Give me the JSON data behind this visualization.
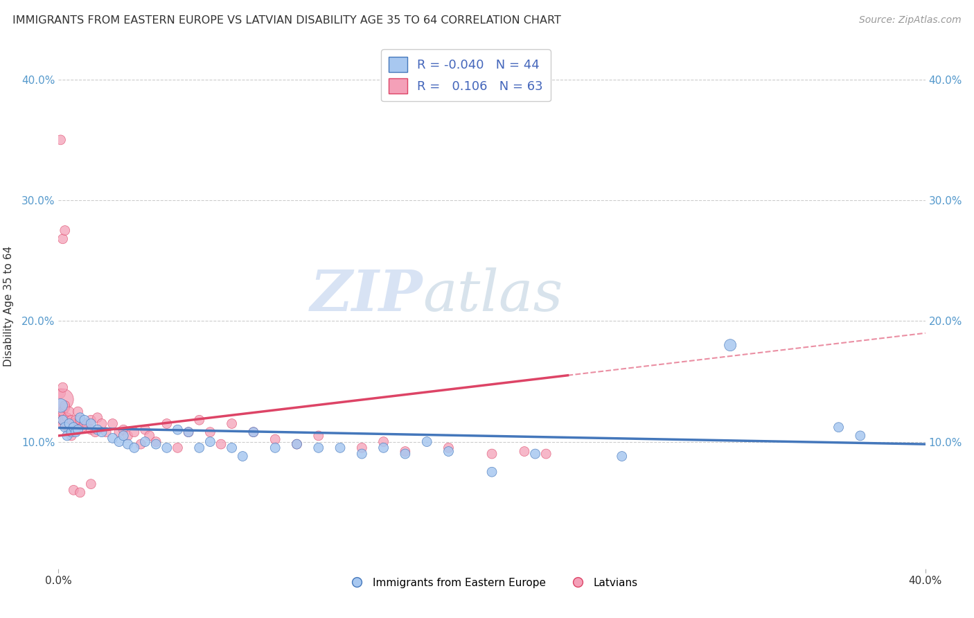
{
  "title": "IMMIGRANTS FROM EASTERN EUROPE VS LATVIAN DISABILITY AGE 35 TO 64 CORRELATION CHART",
  "source": "Source: ZipAtlas.com",
  "ylabel": "Disability Age 35 to 64",
  "xlim": [
    0.0,
    0.4
  ],
  "ylim": [
    -0.005,
    0.43
  ],
  "yticks": [
    0.1,
    0.2,
    0.3,
    0.4
  ],
  "ytick_labels": [
    "10.0%",
    "20.0%",
    "30.0%",
    "40.0%"
  ],
  "legend_blue_r": "-0.040",
  "legend_blue_n": "44",
  "legend_pink_r": "0.106",
  "legend_pink_n": "63",
  "legend_label_blue": "Immigrants from Eastern Europe",
  "legend_label_pink": "Latvians",
  "watermark_zip": "ZIP",
  "watermark_atlas": "atlas",
  "blue_scatter": {
    "x": [
      0.001,
      0.002,
      0.003,
      0.004,
      0.005,
      0.006,
      0.007,
      0.008,
      0.009,
      0.01,
      0.012,
      0.015,
      0.018,
      0.02,
      0.025,
      0.028,
      0.03,
      0.032,
      0.035,
      0.04,
      0.045,
      0.05,
      0.055,
      0.06,
      0.065,
      0.07,
      0.08,
      0.085,
      0.09,
      0.1,
      0.11,
      0.12,
      0.13,
      0.14,
      0.15,
      0.16,
      0.17,
      0.18,
      0.2,
      0.22,
      0.26,
      0.31,
      0.36,
      0.37
    ],
    "y": [
      0.13,
      0.118,
      0.112,
      0.105,
      0.115,
      0.108,
      0.112,
      0.108,
      0.11,
      0.12,
      0.118,
      0.115,
      0.11,
      0.108,
      0.103,
      0.1,
      0.105,
      0.098,
      0.095,
      0.1,
      0.098,
      0.095,
      0.11,
      0.108,
      0.095,
      0.1,
      0.095,
      0.088,
      0.108,
      0.095,
      0.098,
      0.095,
      0.095,
      0.09,
      0.095,
      0.09,
      0.1,
      0.092,
      0.075,
      0.09,
      0.088,
      0.18,
      0.112,
      0.105
    ],
    "sizes": [
      200,
      100,
      100,
      100,
      100,
      100,
      100,
      100,
      100,
      100,
      100,
      100,
      100,
      100,
      100,
      100,
      100,
      100,
      100,
      100,
      100,
      100,
      100,
      100,
      100,
      100,
      100,
      100,
      100,
      100,
      100,
      100,
      100,
      100,
      100,
      100,
      100,
      100,
      100,
      100,
      100,
      150,
      100,
      100
    ]
  },
  "pink_scatter": {
    "x": [
      0.0,
      0.001,
      0.001,
      0.001,
      0.002,
      0.002,
      0.002,
      0.002,
      0.003,
      0.003,
      0.003,
      0.004,
      0.004,
      0.005,
      0.005,
      0.006,
      0.006,
      0.007,
      0.008,
      0.009,
      0.01,
      0.011,
      0.012,
      0.013,
      0.015,
      0.015,
      0.017,
      0.018,
      0.02,
      0.022,
      0.025,
      0.028,
      0.03,
      0.032,
      0.035,
      0.038,
      0.04,
      0.042,
      0.045,
      0.05,
      0.055,
      0.06,
      0.065,
      0.07,
      0.075,
      0.08,
      0.09,
      0.1,
      0.11,
      0.12,
      0.14,
      0.15,
      0.16,
      0.18,
      0.2,
      0.215,
      0.225,
      0.001,
      0.002,
      0.003,
      0.007,
      0.01,
      0.015
    ],
    "y": [
      0.118,
      0.125,
      0.14,
      0.115,
      0.135,
      0.118,
      0.145,
      0.125,
      0.128,
      0.118,
      0.13,
      0.12,
      0.112,
      0.125,
      0.11,
      0.118,
      0.105,
      0.115,
      0.118,
      0.125,
      0.118,
      0.112,
      0.115,
      0.115,
      0.11,
      0.118,
      0.108,
      0.12,
      0.115,
      0.108,
      0.115,
      0.108,
      0.11,
      0.105,
      0.108,
      0.098,
      0.11,
      0.105,
      0.1,
      0.115,
      0.095,
      0.108,
      0.118,
      0.108,
      0.098,
      0.115,
      0.108,
      0.102,
      0.098,
      0.105,
      0.095,
      0.1,
      0.092,
      0.095,
      0.09,
      0.092,
      0.09,
      0.35,
      0.268,
      0.275,
      0.06,
      0.058,
      0.065
    ],
    "sizes": [
      100,
      100,
      100,
      100,
      500,
      100,
      100,
      100,
      100,
      100,
      100,
      100,
      100,
      100,
      100,
      100,
      100,
      100,
      100,
      100,
      100,
      100,
      100,
      100,
      100,
      100,
      100,
      100,
      100,
      100,
      100,
      100,
      100,
      100,
      100,
      100,
      100,
      100,
      100,
      100,
      100,
      100,
      100,
      100,
      100,
      100,
      100,
      100,
      100,
      100,
      100,
      100,
      100,
      100,
      100,
      100,
      100,
      100,
      100,
      100,
      100,
      100,
      100
    ]
  },
  "blue_line": {
    "x0": 0.0,
    "y0": 0.1115,
    "x1": 0.4,
    "y1": 0.098
  },
  "pink_line_solid": {
    "x0": 0.0,
    "y0": 0.105,
    "x1": 0.235,
    "y1": 0.155
  },
  "pink_line_dashed": {
    "x0": 0.235,
    "y0": 0.155,
    "x1": 0.4,
    "y1": 0.19
  },
  "color_blue": "#a8c8f0",
  "color_pink": "#f4a0b8",
  "color_blue_line": "#4477bb",
  "color_pink_line": "#dd4466",
  "color_pink_dashed": "#f4a0b8",
  "background_color": "#ffffff",
  "grid_color": "#cccccc"
}
